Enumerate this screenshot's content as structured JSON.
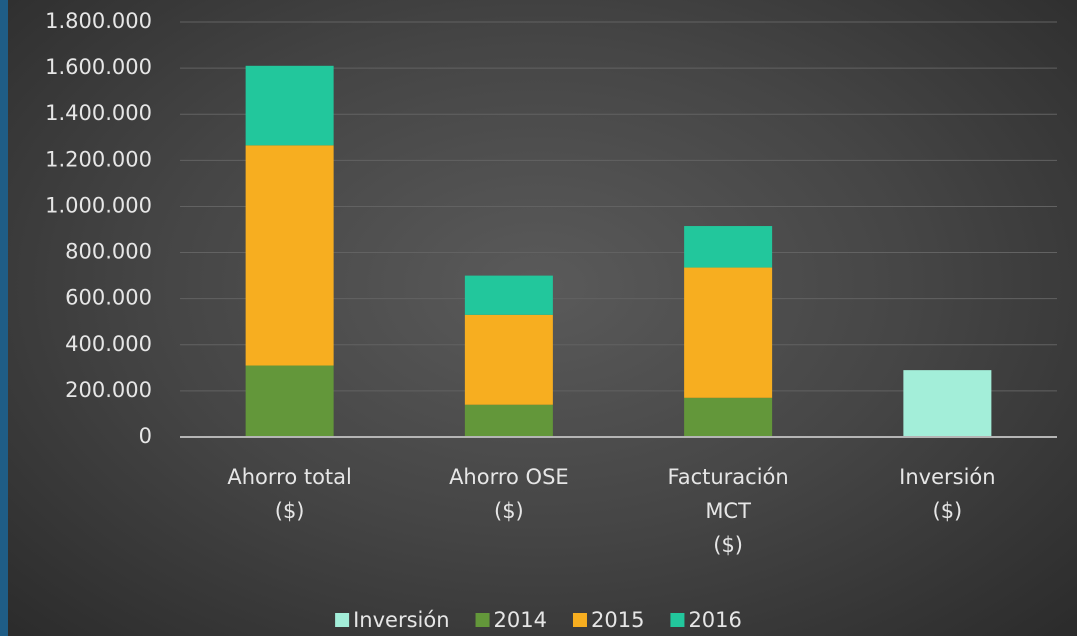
{
  "chart_data": {
    "type": "stacked-bar",
    "categories": [
      [
        "Ahorro total",
        "($)"
      ],
      [
        "Ahorro OSE",
        "($)"
      ],
      [
        "Facturación",
        "MCT",
        "($)"
      ],
      [
        "Inversión",
        "($)"
      ]
    ],
    "series": [
      {
        "name": "Inversión",
        "color": "#a3eed9",
        "values": [
          null,
          null,
          null,
          290000
        ]
      },
      {
        "name": "2014",
        "color": "#63973a",
        "values": [
          310000,
          140000,
          170000,
          null
        ]
      },
      {
        "name": "2015",
        "color": "#f7ae20",
        "values": [
          955000,
          390000,
          565000,
          null
        ]
      },
      {
        "name": "2016",
        "color": "#22c79c",
        "values": [
          345000,
          170000,
          180000,
          null
        ]
      }
    ],
    "ylim": [
      0,
      1800000
    ],
    "yticks": [
      0,
      {
        "value": 200000,
        "label": "200.000"
      },
      {
        "value": 400000,
        "label": "400.000"
      },
      {
        "value": 600000,
        "label": "600.000"
      },
      {
        "value": 800000,
        "label": "800.000"
      },
      {
        "value": 1000000,
        "label": "1.000.000"
      },
      {
        "value": 1200000,
        "label": "1.200.000"
      },
      {
        "value": 1400000,
        "label": "1.400.000"
      },
      {
        "value": 1600000,
        "label": "1.600.000"
      },
      {
        "value": 1800000,
        "label": "1.800.000"
      }
    ],
    "grid": true,
    "legend": "bottom"
  }
}
